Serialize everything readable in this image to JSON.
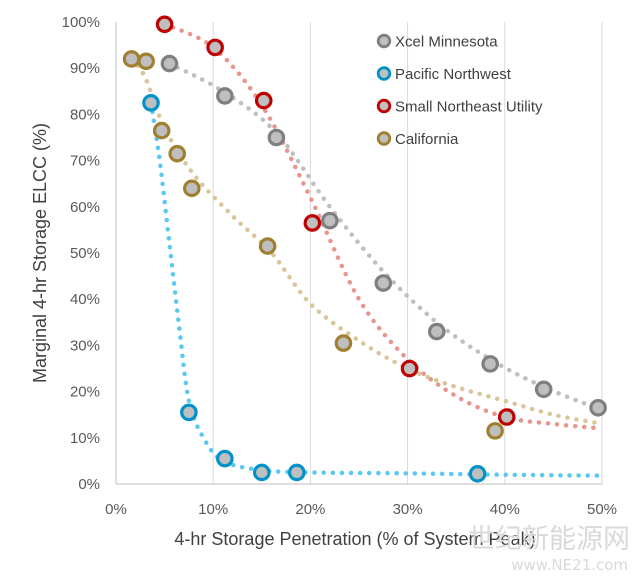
{
  "chart_data": {
    "type": "scatter",
    "xlabel": "4-hr Storage Penetration (% of System Peak)",
    "ylabel": "Marginal 4-hr Storage ELCC (%)",
    "xlim": [
      0,
      50
    ],
    "ylim": [
      0,
      100
    ],
    "x_ticks": [
      "0%",
      "10%",
      "20%",
      "30%",
      "40%",
      "50%"
    ],
    "y_ticks": [
      "0%",
      "10%",
      "20%",
      "30%",
      "40%",
      "50%",
      "60%",
      "70%",
      "80%",
      "90%",
      "100%"
    ],
    "grid": "vertical",
    "legend_position": "top-right",
    "series": [
      {
        "name": "Xcel Minnesota",
        "color": "#7f7f7f",
        "trend_color": "#bfbfbf",
        "points": [
          {
            "x": 5.5,
            "y": 91
          },
          {
            "x": 11.2,
            "y": 84
          },
          {
            "x": 16.5,
            "y": 75
          },
          {
            "x": 22,
            "y": 57
          },
          {
            "x": 27.5,
            "y": 43.5
          },
          {
            "x": 33,
            "y": 33
          },
          {
            "x": 38.5,
            "y": 26
          },
          {
            "x": 44,
            "y": 20.5
          },
          {
            "x": 49.6,
            "y": 16.5
          }
        ],
        "trend": [
          [
            5.5,
            91
          ],
          [
            11,
            85
          ],
          [
            16.5,
            76
          ],
          [
            22,
            60
          ],
          [
            27.5,
            46
          ],
          [
            33,
            35
          ],
          [
            38.5,
            27
          ],
          [
            44,
            21
          ],
          [
            50,
            16
          ]
        ]
      },
      {
        "name": "Pacific Northwest",
        "color": "#0092c9",
        "trend_color": "#5bc9ef",
        "points": [
          {
            "x": 3.6,
            "y": 82.5
          },
          {
            "x": 7.5,
            "y": 15.5
          },
          {
            "x": 11.2,
            "y": 5.5
          },
          {
            "x": 15,
            "y": 2.5
          },
          {
            "x": 18.6,
            "y": 2.5
          },
          {
            "x": 37.2,
            "y": 2.2
          }
        ],
        "trend": [
          [
            3.6,
            82.5
          ],
          [
            4.5,
            70
          ],
          [
            5.5,
            52
          ],
          [
            6.5,
            34
          ],
          [
            7.5,
            18
          ],
          [
            9,
            10
          ],
          [
            11,
            5
          ],
          [
            15,
            3
          ],
          [
            20,
            2.5
          ],
          [
            30,
            2.3
          ],
          [
            40,
            2
          ],
          [
            50,
            1.8
          ]
        ]
      },
      {
        "name": "Small Northeast Utility",
        "color": "#c00000",
        "trend_color": "#e6968d",
        "points": [
          {
            "x": 5,
            "y": 99.5
          },
          {
            "x": 10.2,
            "y": 94.5
          },
          {
            "x": 15.2,
            "y": 83
          },
          {
            "x": 20.2,
            "y": 56.5
          },
          {
            "x": 30.2,
            "y": 25
          },
          {
            "x": 40.2,
            "y": 14.5
          }
        ],
        "trend": [
          [
            5,
            99.5
          ],
          [
            10,
            94.5
          ],
          [
            15,
            82
          ],
          [
            20,
            62
          ],
          [
            25,
            40
          ],
          [
            30,
            27
          ],
          [
            35,
            19
          ],
          [
            40,
            14.5
          ],
          [
            45,
            13
          ],
          [
            50,
            12
          ]
        ]
      },
      {
        "name": "California",
        "color": "#a08030",
        "trend_color": "#d9c59a",
        "points": [
          {
            "x": 1.6,
            "y": 92
          },
          {
            "x": 3.1,
            "y": 91.5
          },
          {
            "x": 4.7,
            "y": 76.5
          },
          {
            "x": 6.3,
            "y": 71.5
          },
          {
            "x": 7.8,
            "y": 64
          },
          {
            "x": 15.6,
            "y": 51.5
          },
          {
            "x": 23.4,
            "y": 30.5
          },
          {
            "x": 39,
            "y": 11.5
          }
        ],
        "trend": [
          [
            1.6,
            92
          ],
          [
            3,
            88
          ],
          [
            5,
            77
          ],
          [
            8,
            67
          ],
          [
            12,
            58
          ],
          [
            16,
            50
          ],
          [
            20,
            39
          ],
          [
            25,
            31
          ],
          [
            30,
            25
          ],
          [
            35,
            21
          ],
          [
            40,
            18
          ],
          [
            45,
            15
          ],
          [
            50,
            13
          ]
        ]
      }
    ]
  },
  "watermark": {
    "line1": "世纪新能源网",
    "line2": "www.NE21.com"
  }
}
